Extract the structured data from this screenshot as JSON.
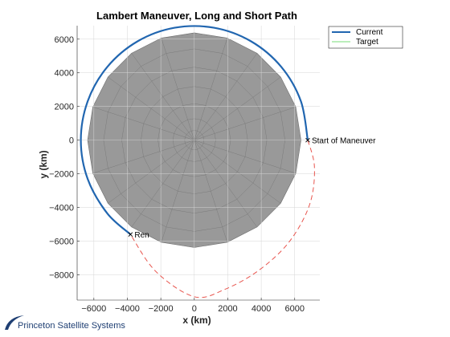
{
  "chart_data": {
    "type": "line",
    "title": "Lambert Maneuver, Long and Short Path",
    "xlabel": "x (km)",
    "ylabel": "y (km)",
    "xlim": [
      -7000,
      7500
    ],
    "ylim": [
      -9500,
      6800
    ],
    "xticks": [
      -6000,
      -4000,
      -2000,
      0,
      2000,
      4000,
      6000
    ],
    "yticks": [
      -8000,
      -6000,
      -4000,
      -2000,
      0,
      2000,
      4000,
      6000
    ],
    "grid": true,
    "legend_position": "top-right",
    "series": [
      {
        "name": "Current",
        "color": "#2166b0",
        "style": "solid",
        "x": [
          6778,
          6367,
          5193,
          3389,
          1177,
          -1177,
          -3389,
          -5193,
          -6367,
          -6778,
          -6367,
          -5193,
          -3814
        ],
        "y": [
          0,
          2318,
          4357,
          5870,
          6675,
          6675,
          5870,
          4357,
          2318,
          0,
          -2318,
          -4357,
          -5600
        ]
      },
      {
        "name": "Target",
        "color": "#77dd77",
        "style": "solid",
        "x": [
          6778,
          6367,
          5193,
          3389,
          1177,
          -1177,
          -3389,
          -5193,
          -6367,
          -6778,
          -6367,
          -5193,
          -3814
        ],
        "y": [
          0,
          2318,
          4357,
          5870,
          6675,
          6675,
          5870,
          4357,
          2318,
          0,
          -2318,
          -4357,
          -5600
        ]
      },
      {
        "name": "",
        "color": "#e8554e",
        "style": "dashed",
        "x": [
          6778,
          7180,
          6900,
          5700,
          3900,
          1850,
          0,
          -2300,
          -3814
        ],
        "y": [
          0,
          -1600,
          -3800,
          -6000,
          -7700,
          -8850,
          -9300,
          -7800,
          -5600
        ]
      }
    ],
    "earth": {
      "radius": 6378,
      "color": "#999999"
    },
    "annotations": [
      {
        "text": "Start of Maneuver",
        "x": 6778,
        "y": 0
      },
      {
        "text": "Ren",
        "x": -3814,
        "y": -5600
      }
    ]
  },
  "logo": {
    "text": "Princeton Satellite Systems",
    "color": "#1f3f73"
  }
}
